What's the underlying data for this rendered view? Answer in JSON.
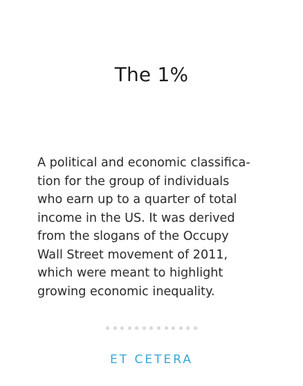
{
  "card": {
    "title": "The 1%",
    "description_lines": [
      "A political and economic classifica-",
      "tion for the group of individuals",
      "who earn up to a quarter of total",
      "income in the US. It was derived",
      "from the slogans of the Occupy",
      "Wall Street movement of 2011,",
      "which were meant to highlight",
      "growing economic inequality."
    ],
    "brand": "ET CETERA",
    "dot_count": 13
  },
  "colors": {
    "title": "#1d1d1d",
    "body_text": "#2a2a2a",
    "dots": "#d7d7d7",
    "brand": "#35a7dc",
    "background": "#ffffff"
  }
}
